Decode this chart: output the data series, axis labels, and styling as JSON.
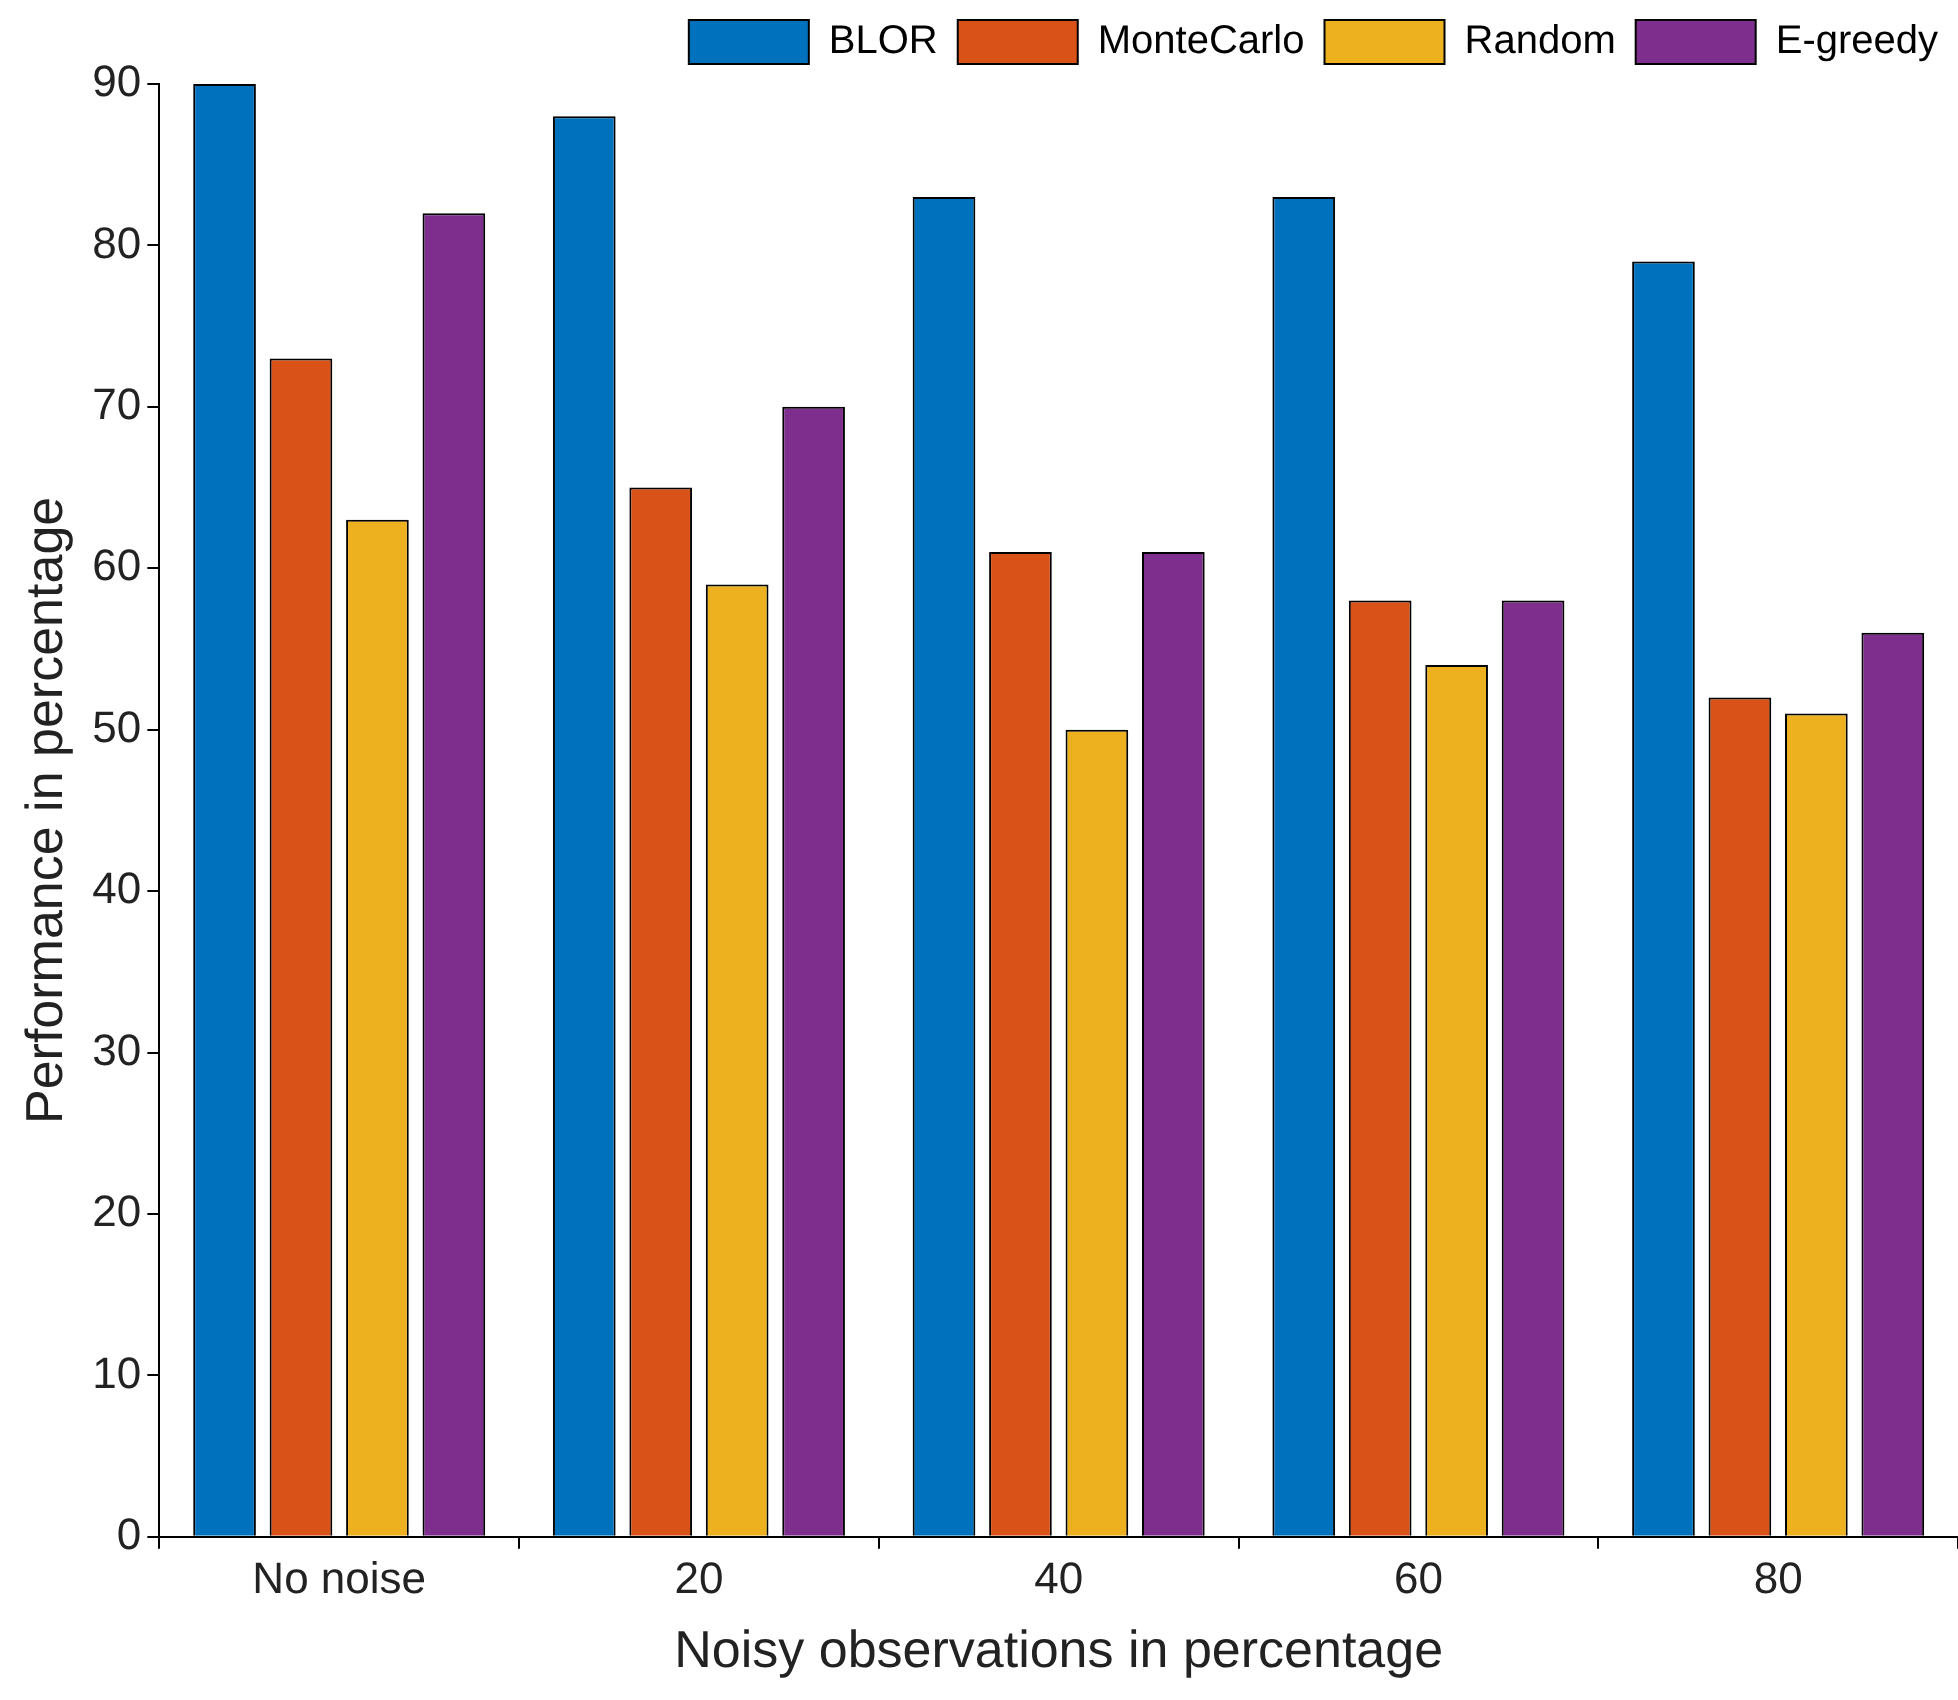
{
  "chart_data": {
    "type": "bar",
    "xlabel": "Noisy observations in percentage",
    "ylabel": "Performance in percentage",
    "categories": [
      "No noise",
      "20",
      "40",
      "60",
      "80"
    ],
    "series": [
      {
        "name": "BLOR",
        "color": "#0072bd",
        "values": [
          90,
          88,
          83,
          83,
          79
        ]
      },
      {
        "name": "MonteCarlo",
        "color": "#d95319",
        "values": [
          73,
          65,
          61,
          58,
          52
        ]
      },
      {
        "name": "Random",
        "color": "#edb120",
        "values": [
          63,
          59,
          50,
          54,
          51
        ]
      },
      {
        "name": "E-greedy",
        "color": "#7e2f8e",
        "values": [
          82,
          70,
          61,
          58,
          56
        ]
      }
    ],
    "ylim": [
      0,
      90
    ],
    "yticks": [
      0,
      10,
      20,
      30,
      40,
      50,
      60,
      70,
      80,
      90
    ],
    "grid": false,
    "legend": "top right"
  }
}
